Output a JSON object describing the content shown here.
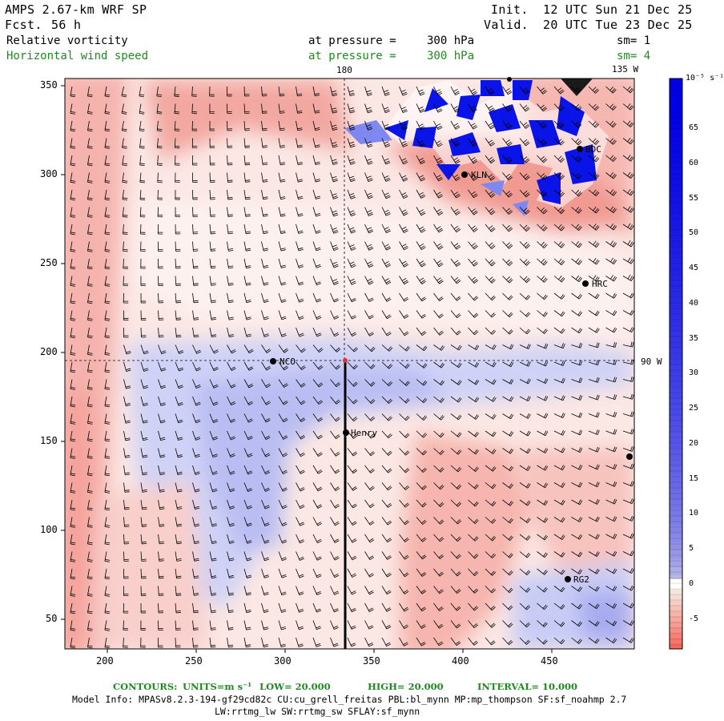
{
  "header": {
    "model_title": "AMPS 2.67-km WRF SP",
    "forecast_label": "Fcst.",
    "forecast_hours": "56 h",
    "init_label": "Init.",
    "init_time": "12 UTC Sun 21 Dec 25",
    "valid_label": "Valid.",
    "valid_time": "20 UTC Tue 23 Dec 25"
  },
  "fields": [
    {
      "name": "Relative vorticity",
      "pressure_label": "at pressure =",
      "pressure_value": "300 hPa",
      "smoothing": "sm= 1",
      "color": "#000000"
    },
    {
      "name": "Horizontal wind speed",
      "pressure_label": "at pressure =",
      "pressure_value": "300 hPa",
      "smoothing": "sm= 4",
      "color": "#1f8a1f"
    }
  ],
  "map": {
    "longitude_labels": {
      "top_center": "180",
      "top_right": "135 W",
      "right": "90 W"
    },
    "x_ticks": [
      "200",
      "250",
      "300",
      "350",
      "400",
      "450"
    ],
    "y_ticks": [
      "350",
      "300",
      "250",
      "200",
      "150",
      "100",
      "50"
    ],
    "stations": [
      {
        "label": "BDC"
      },
      {
        "label": "KLN"
      },
      {
        "label": "HRC"
      },
      {
        "label": "NCO"
      },
      {
        "label": "Henry"
      },
      {
        "label": "RG2"
      }
    ]
  },
  "colorbar": {
    "unit_label": "10⁻⁵ s⁻¹",
    "labels": [
      "65",
      "60",
      "55",
      "50",
      "45",
      "40",
      "35",
      "30",
      "25",
      "20",
      "15",
      "10",
      "5",
      "0",
      "-5"
    ],
    "colors": {
      "positive": "#0000e6",
      "zero": "#ffffff",
      "negative": "#f07878"
    }
  },
  "footer": {
    "contours_label": "CONTOURS:",
    "units_label": "UNITS=m s⁻¹",
    "low": "LOW=  20.000",
    "high": "HIGH=  20.000",
    "interval": "INTERVAL=   10.000",
    "model_info": "Model Info: MPASv8.2.3-194-gf29cd82c CU:cu_grell_freitas PBL:bl_mynn MP:mp_thompson SF:sf_noahmp 2.7",
    "model_info2": "LW:rrtmg_lw SW:rrtmg_sw SFLAY:sf_mynn"
  }
}
